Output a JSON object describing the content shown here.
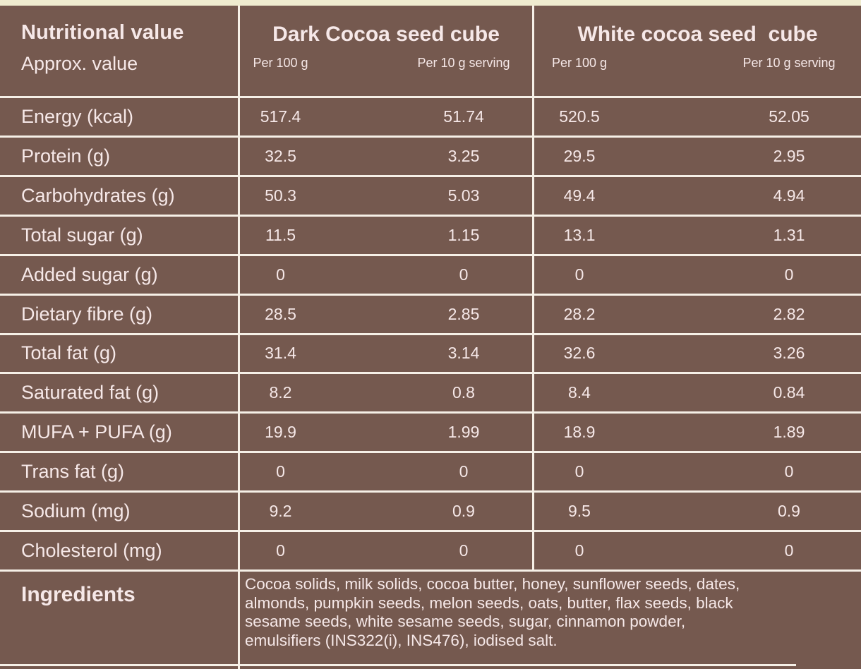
{
  "colors": {
    "background": "#75594F",
    "top_stripe": "#EFEBCF",
    "grid_line": "#F6F0E7",
    "text": "#F6E8E8"
  },
  "header": {
    "title": "Nutritional value",
    "subtitle": "Approx. value",
    "products": [
      {
        "name": "Dark Cocoa seed cube",
        "per_100g_label": "Per 100 g",
        "per_10g_label": "Per 10 g serving"
      },
      {
        "name": "White cocoa seed  cube",
        "per_100g_label": "Per 100 g",
        "per_10g_label": "Per 10 g serving"
      }
    ]
  },
  "rows": [
    {
      "label": "Energy (kcal)",
      "dark_per_100g": "517.4",
      "dark_per_10g": "51.74",
      "white_per_100g": "520.5",
      "white_per_10g": "52.05"
    },
    {
      "label": "Protein (g)",
      "dark_per_100g": "32.5",
      "dark_per_10g": "3.25",
      "white_per_100g": "29.5",
      "white_per_10g": "2.95"
    },
    {
      "label": "Carbohydrates (g)",
      "dark_per_100g": "50.3",
      "dark_per_10g": "5.03",
      "white_per_100g": "49.4",
      "white_per_10g": "4.94"
    },
    {
      "label": "Total sugar (g)",
      "dark_per_100g": "11.5",
      "dark_per_10g": "1.15",
      "white_per_100g": "13.1",
      "white_per_10g": "1.31"
    },
    {
      "label": "Added sugar (g)",
      "dark_per_100g": "0",
      "dark_per_10g": "0",
      "white_per_100g": "0",
      "white_per_10g": "0"
    },
    {
      "label": "Dietary fibre (g)",
      "dark_per_100g": "28.5",
      "dark_per_10g": "2.85",
      "white_per_100g": "28.2",
      "white_per_10g": "2.82"
    },
    {
      "label": "Total fat (g)",
      "dark_per_100g": "31.4",
      "dark_per_10g": "3.14",
      "white_per_100g": "32.6",
      "white_per_10g": "3.26"
    },
    {
      "label": "Saturated fat (g)",
      "dark_per_100g": "8.2",
      "dark_per_10g": "0.8",
      "white_per_100g": "8.4",
      "white_per_10g": "0.84"
    },
    {
      "label": "MUFA + PUFA (g)",
      "dark_per_100g": "19.9",
      "dark_per_10g": "1.99",
      "white_per_100g": "18.9",
      "white_per_10g": "1.89"
    },
    {
      "label": "Trans fat (g)",
      "dark_per_100g": "0",
      "dark_per_10g": "0",
      "white_per_100g": "0",
      "white_per_10g": "0"
    },
    {
      "label": "Sodium (mg)",
      "dark_per_100g": "9.2",
      "dark_per_10g": "0.9",
      "white_per_100g": "9.5",
      "white_per_10g": "0.9"
    },
    {
      "label": "Cholesterol (mg)",
      "dark_per_100g": "0",
      "dark_per_10g": "0",
      "white_per_100g": "0",
      "white_per_10g": "0"
    }
  ],
  "ingredients": {
    "label": "Ingredients",
    "text": "Cocoa solids, milk solids, cocoa butter, honey, sunflower seeds, dates,\nalmonds, pumpkin seeds, melon seeds, oats, butter, flax seeds, black\nsesame seeds, white sesame seeds, sugar, cinnamon powder,\nemulsifiers (INS322(i), INS476), iodised salt."
  }
}
